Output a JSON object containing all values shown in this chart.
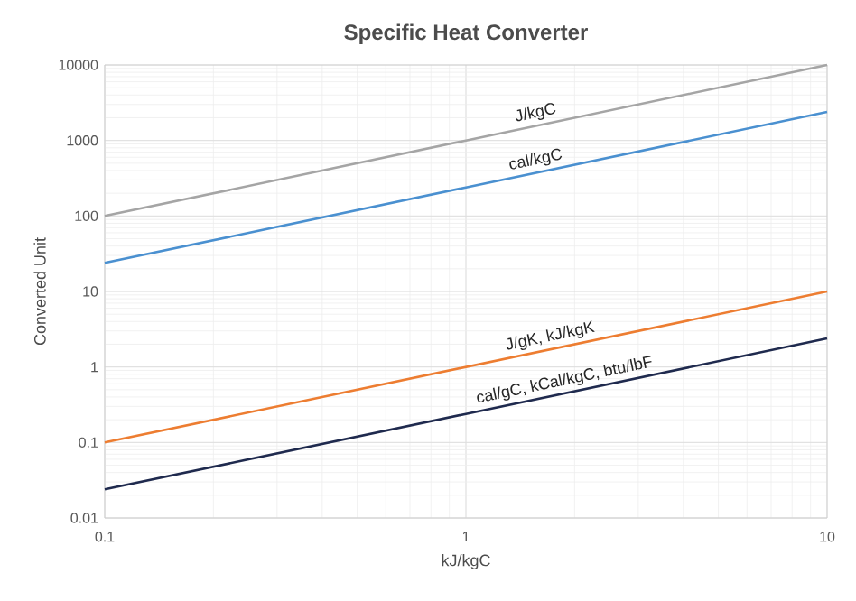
{
  "chart_data": {
    "type": "line",
    "title": "Specific Heat Converter",
    "xlabel": "kJ/kgC",
    "ylabel": "Converted Unit",
    "log": "xy",
    "grid": true,
    "marker": "none",
    "line_style": "solid",
    "xlim": [
      0.1,
      10
    ],
    "xticks": [
      0.1,
      1,
      10
    ],
    "ylim": [
      0.01,
      10000
    ],
    "yticks": [
      0.01,
      0.1,
      1,
      10,
      100,
      1000,
      10000
    ],
    "x": [
      0.1,
      1,
      10
    ],
    "series": [
      {
        "name": "J/kgC",
        "color": "#a5a5a5",
        "values": [
          100,
          1000,
          10000
        ]
      },
      {
        "name": "cal/kgC",
        "color": "#4a90d0",
        "values": [
          23.9,
          239,
          2390
        ]
      },
      {
        "name": "J/gK, kJ/kgK",
        "color": "#ed7d31",
        "values": [
          0.1,
          1,
          10
        ]
      },
      {
        "name": "cal/gC, kCal/kgC, btu/lbF",
        "color": "#1f2a4e",
        "values": [
          0.0239,
          0.239,
          2.39
        ]
      }
    ]
  }
}
